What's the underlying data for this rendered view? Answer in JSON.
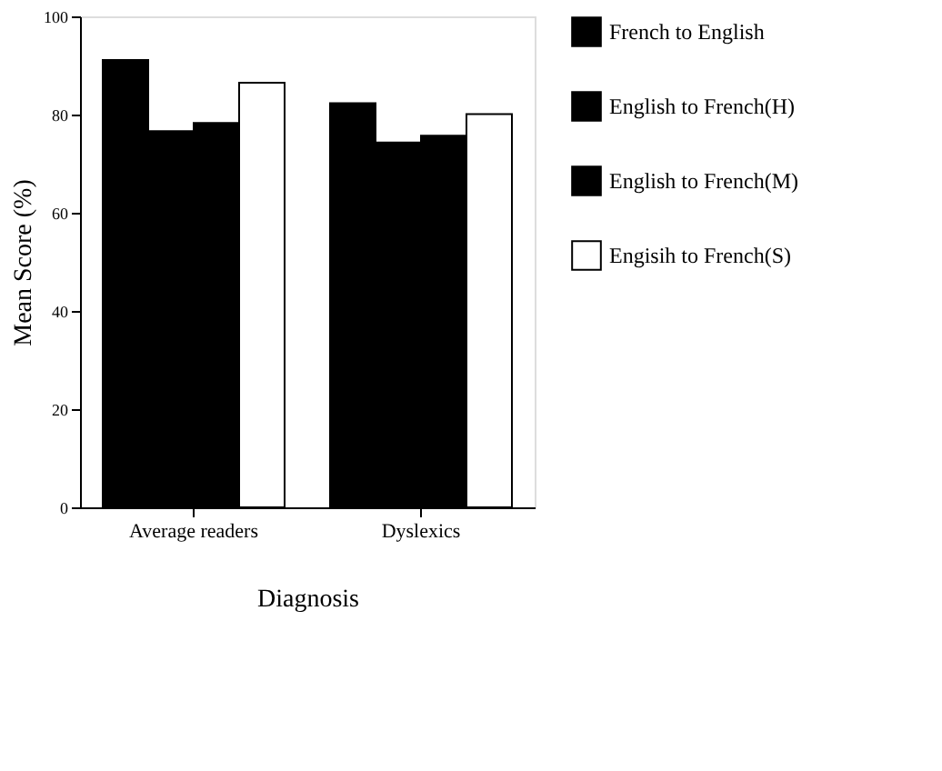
{
  "chart_data": {
    "type": "bar",
    "xlabel": "Diagnosis",
    "ylabel": "Mean Score (%)",
    "categories": [
      "Average readers",
      "Dyslexics"
    ],
    "series": [
      {
        "name": "French to English",
        "color": "#000000",
        "values": [
          91.1,
          82.3
        ]
      },
      {
        "name": "English to French(H)",
        "color": "#000000",
        "values": [
          76.6,
          74.3
        ]
      },
      {
        "name": "English to French(M)",
        "color": "#000000",
        "values": [
          78.3,
          75.7
        ]
      },
      {
        "name": "Engisih to French(S)",
        "color": "#ffffff",
        "values": [
          86.5,
          80.1
        ]
      }
    ],
    "ylim": [
      0,
      100
    ],
    "yticks": [
      0,
      20,
      40,
      60,
      80,
      100
    ],
    "grid": false,
    "legend": "right"
  }
}
